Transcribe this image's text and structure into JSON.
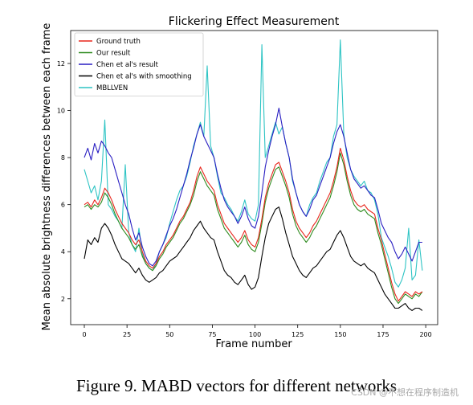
{
  "figure_caption": "Figure 9. MABD vectors for different networks",
  "watermark": "CSDN @不想在程序制造机",
  "chart_data": {
    "type": "line",
    "title": "Flickering Effect Measurement",
    "xlabel": "Frame number",
    "ylabel": "Mean absolute brightness differences between each frame",
    "xlim": [
      -8,
      207
    ],
    "ylim": [
      0.9,
      13.4
    ],
    "xticks": [
      0,
      25,
      50,
      75,
      100,
      125,
      150,
      175,
      200
    ],
    "yticks": [
      2,
      4,
      6,
      8,
      10,
      12
    ],
    "grid": false,
    "legend_position": "top-left",
    "series": [
      {
        "name": "Ground truth",
        "color": "#e8261c",
        "x": [
          0,
          2,
          4,
          6,
          8,
          10,
          12,
          14,
          16,
          18,
          20,
          22,
          24,
          26,
          28,
          30,
          32,
          34,
          36,
          38,
          40,
          42,
          44,
          46,
          48,
          50,
          52,
          54,
          56,
          58,
          60,
          62,
          64,
          66,
          68,
          70,
          72,
          74,
          76,
          78,
          80,
          82,
          84,
          86,
          88,
          90,
          92,
          94,
          96,
          98,
          100,
          102,
          104,
          106,
          108,
          110,
          112,
          114,
          116,
          118,
          120,
          122,
          124,
          126,
          128,
          130,
          132,
          134,
          136,
          138,
          140,
          142,
          144,
          146,
          148,
          150,
          152,
          154,
          156,
          158,
          160,
          162,
          164,
          166,
          168,
          170,
          172,
          174,
          176,
          178,
          180,
          182,
          184,
          186,
          188,
          190,
          192,
          194,
          196,
          198
        ],
        "y": [
          6.0,
          6.1,
          5.9,
          6.2,
          6.0,
          6.3,
          6.7,
          6.5,
          6.2,
          5.8,
          5.5,
          5.2,
          5.0,
          4.8,
          4.5,
          4.3,
          4.5,
          4.0,
          3.6,
          3.4,
          3.3,
          3.5,
          3.8,
          4.0,
          4.3,
          4.5,
          4.7,
          5.0,
          5.3,
          5.5,
          5.8,
          6.1,
          6.6,
          7.2,
          7.6,
          7.3,
          7.0,
          6.8,
          6.6,
          6.0,
          5.6,
          5.2,
          5.0,
          4.8,
          4.6,
          4.4,
          4.6,
          4.9,
          4.5,
          4.3,
          4.2,
          4.6,
          5.4,
          6.3,
          6.9,
          7.3,
          7.7,
          7.8,
          7.4,
          7.0,
          6.5,
          5.8,
          5.3,
          5.0,
          4.8,
          4.6,
          4.8,
          5.1,
          5.3,
          5.6,
          5.9,
          6.2,
          6.5,
          7.0,
          7.6,
          8.4,
          7.9,
          7.2,
          6.6,
          6.2,
          6.0,
          5.9,
          6.0,
          5.8,
          5.7,
          5.6,
          5.0,
          4.5,
          3.9,
          3.3,
          2.7,
          2.2,
          1.9,
          2.1,
          2.3,
          2.2,
          2.1,
          2.3,
          2.2,
          2.3
        ]
      },
      {
        "name": "Our result",
        "color": "#2e8b1f",
        "x": [
          0,
          2,
          4,
          6,
          8,
          10,
          12,
          14,
          16,
          18,
          20,
          22,
          24,
          26,
          28,
          30,
          32,
          34,
          36,
          38,
          40,
          42,
          44,
          46,
          48,
          50,
          52,
          54,
          56,
          58,
          60,
          62,
          64,
          66,
          68,
          70,
          72,
          74,
          76,
          78,
          80,
          82,
          84,
          86,
          88,
          90,
          92,
          94,
          96,
          98,
          100,
          102,
          104,
          106,
          108,
          110,
          112,
          114,
          116,
          118,
          120,
          122,
          124,
          126,
          128,
          130,
          132,
          134,
          136,
          138,
          140,
          142,
          144,
          146,
          148,
          150,
          152,
          154,
          156,
          158,
          160,
          162,
          164,
          166,
          168,
          170,
          172,
          174,
          176,
          178,
          180,
          182,
          184,
          186,
          188,
          190,
          192,
          194,
          196,
          198
        ],
        "y": [
          5.9,
          6.0,
          5.8,
          6.0,
          5.9,
          6.1,
          6.5,
          6.3,
          6.0,
          5.6,
          5.3,
          5.0,
          4.8,
          4.6,
          4.3,
          4.1,
          4.3,
          3.8,
          3.5,
          3.3,
          3.2,
          3.4,
          3.7,
          3.9,
          4.2,
          4.4,
          4.6,
          4.9,
          5.2,
          5.4,
          5.7,
          6.0,
          6.4,
          7.0,
          7.4,
          7.1,
          6.8,
          6.6,
          6.4,
          5.8,
          5.4,
          5.0,
          4.8,
          4.6,
          4.4,
          4.2,
          4.4,
          4.7,
          4.3,
          4.1,
          4.0,
          4.4,
          5.2,
          6.1,
          6.7,
          7.1,
          7.5,
          7.6,
          7.2,
          6.8,
          6.3,
          5.6,
          5.1,
          4.8,
          4.6,
          4.4,
          4.6,
          4.9,
          5.1,
          5.4,
          5.7,
          6.0,
          6.3,
          6.8,
          7.4,
          8.2,
          7.7,
          7.0,
          6.4,
          6.0,
          5.8,
          5.7,
          5.8,
          5.6,
          5.5,
          5.4,
          4.8,
          4.3,
          3.7,
          3.1,
          2.5,
          2.0,
          1.8,
          2.0,
          2.2,
          2.1,
          2.0,
          2.2,
          2.1,
          2.3
        ]
      },
      {
        "name": "Chen et al's result",
        "color": "#2a1fc2",
        "x": [
          0,
          2,
          4,
          6,
          8,
          10,
          12,
          14,
          16,
          18,
          20,
          22,
          24,
          26,
          28,
          30,
          32,
          34,
          36,
          38,
          40,
          42,
          44,
          46,
          48,
          50,
          52,
          54,
          56,
          58,
          60,
          62,
          64,
          66,
          68,
          70,
          72,
          74,
          76,
          78,
          80,
          82,
          84,
          86,
          88,
          90,
          92,
          94,
          96,
          98,
          100,
          102,
          104,
          106,
          108,
          110,
          112,
          114,
          116,
          118,
          120,
          122,
          124,
          126,
          128,
          130,
          132,
          134,
          136,
          138,
          140,
          142,
          144,
          146,
          148,
          150,
          152,
          154,
          156,
          158,
          160,
          162,
          164,
          166,
          168,
          170,
          172,
          174,
          176,
          178,
          180,
          182,
          184,
          186,
          188,
          190,
          192,
          194,
          196,
          198
        ],
        "y": [
          8.0,
          8.4,
          7.9,
          8.6,
          8.2,
          8.7,
          8.5,
          8.2,
          8.0,
          7.5,
          7.0,
          6.5,
          6.0,
          5.6,
          5.0,
          4.5,
          4.8,
          4.2,
          3.8,
          3.5,
          3.4,
          3.6,
          4.0,
          4.3,
          4.7,
          5.1,
          5.4,
          5.8,
          6.3,
          6.8,
          7.3,
          7.9,
          8.4,
          9.0,
          9.4,
          8.9,
          8.6,
          8.3,
          8.0,
          7.3,
          6.7,
          6.2,
          5.9,
          5.7,
          5.5,
          5.2,
          5.5,
          5.9,
          5.4,
          5.1,
          5.0,
          5.5,
          6.5,
          7.6,
          8.3,
          8.9,
          9.4,
          10.1,
          9.3,
          8.6,
          8.0,
          7.1,
          6.5,
          6.0,
          5.7,
          5.5,
          5.8,
          6.2,
          6.4,
          6.8,
          7.2,
          7.6,
          8.0,
          8.6,
          9.1,
          9.4,
          8.9,
          8.2,
          7.5,
          7.1,
          6.9,
          6.7,
          6.8,
          6.6,
          6.4,
          6.3,
          5.8,
          5.2,
          4.9,
          4.6,
          4.4,
          4.0,
          3.7,
          3.9,
          4.2,
          3.9,
          3.6,
          4.0,
          4.4,
          4.4
        ]
      },
      {
        "name": "Chen et al's with smoothing",
        "color": "#000000",
        "x": [
          0,
          2,
          4,
          6,
          8,
          10,
          12,
          14,
          16,
          18,
          20,
          22,
          24,
          26,
          28,
          30,
          32,
          34,
          36,
          38,
          40,
          42,
          44,
          46,
          48,
          50,
          52,
          54,
          56,
          58,
          60,
          62,
          64,
          66,
          68,
          70,
          72,
          74,
          76,
          78,
          80,
          82,
          84,
          86,
          88,
          90,
          92,
          94,
          96,
          98,
          100,
          102,
          104,
          106,
          108,
          110,
          112,
          114,
          116,
          118,
          120,
          122,
          124,
          126,
          128,
          130,
          132,
          134,
          136,
          138,
          140,
          142,
          144,
          146,
          148,
          150,
          152,
          154,
          156,
          158,
          160,
          162,
          164,
          166,
          168,
          170,
          172,
          174,
          176,
          178,
          180,
          182,
          184,
          186,
          188,
          190,
          192,
          194,
          196,
          198
        ],
        "y": [
          3.7,
          4.5,
          4.3,
          4.6,
          4.4,
          5.0,
          5.2,
          5.0,
          4.7,
          4.3,
          4.0,
          3.7,
          3.6,
          3.5,
          3.3,
          3.1,
          3.3,
          3.0,
          2.8,
          2.7,
          2.8,
          2.9,
          3.1,
          3.2,
          3.4,
          3.6,
          3.7,
          3.8,
          4.0,
          4.2,
          4.4,
          4.6,
          4.9,
          5.1,
          5.3,
          5.0,
          4.8,
          4.6,
          4.5,
          4.0,
          3.6,
          3.2,
          3.0,
          2.9,
          2.7,
          2.6,
          2.8,
          3.0,
          2.6,
          2.4,
          2.5,
          2.9,
          3.8,
          4.6,
          5.2,
          5.5,
          5.8,
          5.9,
          5.4,
          4.8,
          4.3,
          3.8,
          3.5,
          3.2,
          3.0,
          2.9,
          3.1,
          3.3,
          3.4,
          3.6,
          3.8,
          4.0,
          4.1,
          4.4,
          4.7,
          4.9,
          4.6,
          4.2,
          3.8,
          3.6,
          3.5,
          3.4,
          3.5,
          3.3,
          3.2,
          3.1,
          2.8,
          2.5,
          2.2,
          2.0,
          1.8,
          1.6,
          1.6,
          1.7,
          1.8,
          1.6,
          1.5,
          1.6,
          1.6,
          1.5
        ]
      },
      {
        "name": "MBLLVEN",
        "color": "#2ec4c4",
        "x": [
          0,
          2,
          4,
          6,
          8,
          10,
          12,
          14,
          16,
          18,
          20,
          22,
          24,
          26,
          28,
          30,
          32,
          34,
          36,
          38,
          40,
          42,
          44,
          46,
          48,
          50,
          52,
          54,
          56,
          58,
          60,
          62,
          64,
          66,
          68,
          70,
          72,
          74,
          76,
          78,
          80,
          82,
          84,
          86,
          88,
          90,
          92,
          94,
          96,
          98,
          100,
          102,
          104,
          106,
          108,
          110,
          112,
          114,
          116,
          118,
          120,
          122,
          124,
          126,
          128,
          130,
          132,
          134,
          136,
          138,
          140,
          142,
          144,
          146,
          148,
          150,
          152,
          154,
          156,
          158,
          160,
          162,
          164,
          166,
          168,
          170,
          172,
          174,
          176,
          178,
          180,
          182,
          184,
          186,
          188,
          190,
          192,
          194,
          196,
          198
        ],
        "y": [
          7.5,
          7.0,
          6.5,
          6.8,
          6.2,
          7.0,
          9.6,
          6.0,
          5.8,
          5.5,
          5.3,
          5.0,
          7.7,
          4.8,
          4.3,
          4.0,
          5.0,
          3.9,
          3.5,
          3.3,
          3.2,
          3.5,
          4.0,
          4.3,
          4.6,
          5.2,
          5.7,
          6.2,
          6.6,
          6.8,
          7.2,
          7.8,
          8.5,
          9.0,
          9.5,
          8.9,
          11.9,
          8.5,
          8.0,
          7.2,
          6.5,
          6.3,
          6.0,
          5.8,
          5.5,
          5.3,
          5.7,
          6.2,
          5.6,
          5.4,
          5.3,
          6.0,
          12.8,
          8.0,
          8.5,
          9.0,
          9.5,
          9.0,
          9.3,
          8.6,
          8.0,
          7.0,
          6.5,
          6.0,
          5.7,
          5.5,
          6.0,
          6.3,
          6.5,
          7.0,
          7.4,
          7.8,
          8.0,
          8.9,
          9.4,
          13.0,
          9.0,
          8.0,
          7.5,
          7.2,
          7.0,
          6.8,
          7.0,
          6.6,
          6.5,
          6.2,
          5.6,
          4.6,
          4.2,
          3.8,
          3.3,
          2.7,
          2.5,
          2.8,
          3.3,
          5.0,
          2.8,
          3.0,
          4.5,
          3.2
        ]
      }
    ]
  }
}
